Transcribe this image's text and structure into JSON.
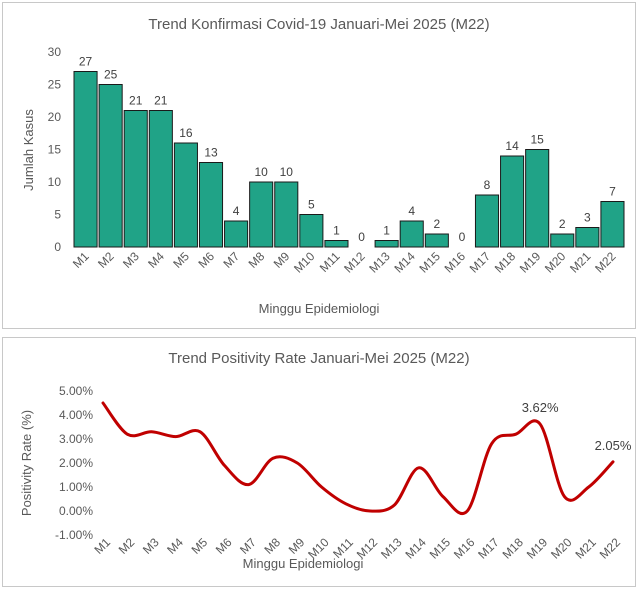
{
  "chart_data": [
    {
      "type": "bar",
      "title": "Trend Konfirmasi Covid-19 Januari-Mei 2025 (M22)",
      "xlabel": "Minggu Epidemiologi",
      "ylabel": "Jumlah Kasus",
      "categories": [
        "M1",
        "M2",
        "M3",
        "M4",
        "M5",
        "M6",
        "M7",
        "M8",
        "M9",
        "M10",
        "M11",
        "M12",
        "M13",
        "M14",
        "M15",
        "M16",
        "M17",
        "M18",
        "M19",
        "M20",
        "M21",
        "M22"
      ],
      "values": [
        27,
        25,
        21,
        21,
        16,
        13,
        4,
        10,
        10,
        5,
        1,
        0,
        1,
        4,
        2,
        0,
        8,
        14,
        15,
        2,
        3,
        7
      ],
      "value_labels": [
        "27",
        "25",
        "21",
        "21",
        "16",
        "13",
        "4",
        "10",
        "10",
        "5",
        "1",
        "0",
        "1",
        "4",
        "2",
        "0",
        "8",
        "14",
        "15",
        "2",
        "3",
        "7"
      ],
      "ylim": [
        0,
        30
      ],
      "yticks": [
        "0",
        "5",
        "10",
        "15",
        "20",
        "25",
        "30"
      ],
      "bar_color": "#20a387",
      "grid": false,
      "legend": "none"
    },
    {
      "type": "line",
      "title": "Trend Positivity Rate Januari-Mei 2025 (M22)",
      "xlabel": "Minggu Epidemiologi",
      "ylabel": "Positivity Rate (%)",
      "categories": [
        "M1",
        "M2",
        "M3",
        "M4",
        "M5",
        "M6",
        "M7",
        "M8",
        "M9",
        "M10",
        "M11",
        "M12",
        "M13",
        "M14",
        "M15",
        "M16",
        "M17",
        "M18",
        "M19",
        "M20",
        "M21",
        "M22"
      ],
      "values": [
        4.5,
        3.2,
        3.3,
        3.1,
        3.3,
        1.9,
        1.1,
        2.2,
        2.0,
        1.0,
        0.3,
        0.0,
        0.25,
        1.8,
        0.6,
        0.0,
        2.8,
        3.2,
        3.62,
        0.6,
        1.0,
        2.05
      ],
      "annotations": [
        {
          "index": 18,
          "label": "3.62%"
        },
        {
          "index": 21,
          "label": "2.05%"
        }
      ],
      "ylim": [
        -1,
        5
      ],
      "yticks": [
        "-1.00%",
        "0.00%",
        "1.00%",
        "2.00%",
        "3.00%",
        "4.00%",
        "5.00%"
      ],
      "line_color": "#c00000",
      "grid": false,
      "legend": "none"
    }
  ]
}
